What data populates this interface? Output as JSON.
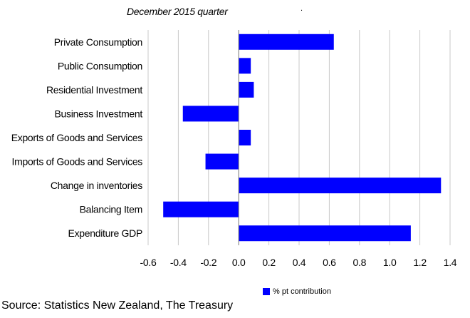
{
  "subtitle": "December 2015 quarter",
  "dot": ".",
  "source": "Source: Statistics New Zealand, The Treasury",
  "colors": {
    "bar": "#0000ff",
    "grid": "#c8c8c8",
    "axis": "#808080"
  },
  "chart_data": {
    "type": "bar",
    "orientation": "horizontal",
    "title": "",
    "subtitle": "December 2015 quarter",
    "categories": [
      "Private Consumption",
      "Public Consumption",
      "Residential Investment",
      "Business Investment",
      "Exports of Goods and Services",
      "Imports of Goods and Services",
      "Change in inventories",
      "Balancing Item",
      "Expenditure GDP"
    ],
    "series": [
      {
        "name": "% pt contribution",
        "color": "#0000ff",
        "values": [
          0.63,
          0.08,
          0.1,
          -0.37,
          0.08,
          -0.22,
          1.34,
          -0.5,
          1.14
        ]
      }
    ],
    "xlim": [
      -0.6,
      1.4
    ],
    "xticks": [
      "-0.6",
      "-0.4",
      "-0.2",
      "0.0",
      "0.2",
      "0.4",
      "0.6",
      "0.8",
      "1.0",
      "1.2",
      "1.4"
    ],
    "grid": "vertical",
    "legend": "bottom"
  }
}
